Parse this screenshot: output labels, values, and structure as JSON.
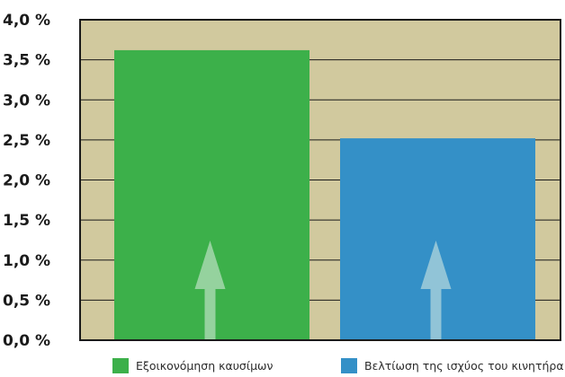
{
  "chart_data": {
    "type": "bar",
    "categories": [
      "Εξοικονόμηση καυσίμων",
      "Βελτίωση της ισχύος του κινητήρα"
    ],
    "values": [
      3.62,
      2.52
    ],
    "colors": [
      "#3cb04a",
      "#3490c7"
    ],
    "y_ticks": [
      "0,0 %",
      "0,5 %",
      "1,0 %",
      "1,5 %",
      "2,0 %",
      "2,5 %",
      "3,0 %",
      "3,5 %",
      "4,0 %"
    ],
    "ylim": [
      0,
      4.0
    ],
    "grid": true,
    "background_color": "#d1c99e",
    "arrow_color": "#dfeee4",
    "arrow_opacity": 0.55,
    "legend": [
      {
        "label": "Εξοικονόμηση καυσίμων",
        "color": "#3cb04a"
      },
      {
        "label": "Βελτίωση της ισχύος του κινητήρα",
        "color": "#3490c7"
      }
    ]
  }
}
